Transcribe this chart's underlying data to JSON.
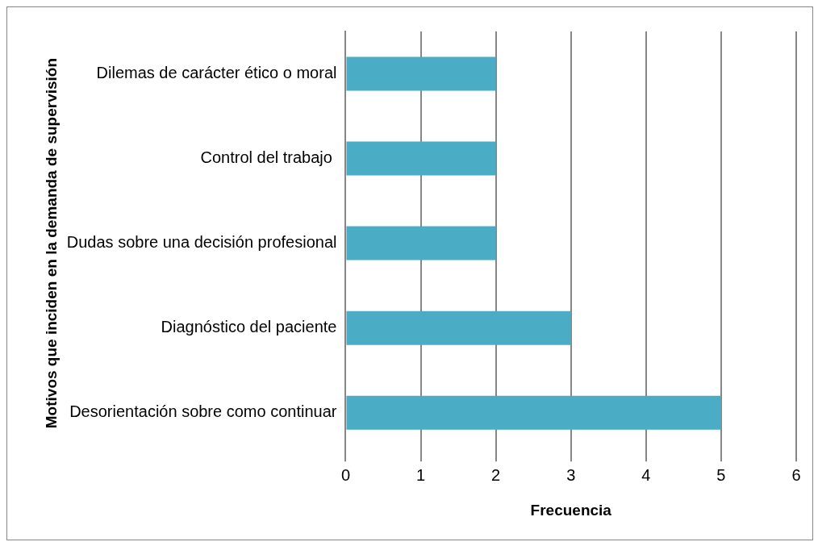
{
  "chart_data": {
    "type": "bar",
    "orientation": "horizontal",
    "categories": [
      "Dilemas de carácter ético o moral",
      "Control del trabajo ",
      "Dudas sobre una decisión profesional",
      "Diagnóstico del paciente",
      "Desorientación sobre como continuar"
    ],
    "values": [
      2,
      2,
      2,
      3,
      5
    ],
    "color": "#4bacc6",
    "xlim": [
      0,
      6
    ],
    "xticks": [
      0,
      1,
      2,
      3,
      4,
      5,
      6
    ],
    "xlabel": "Frecuencia",
    "ylabel": "Motivos que inciden en la demanda de supervisión",
    "grid": "x",
    "legend": false
  }
}
